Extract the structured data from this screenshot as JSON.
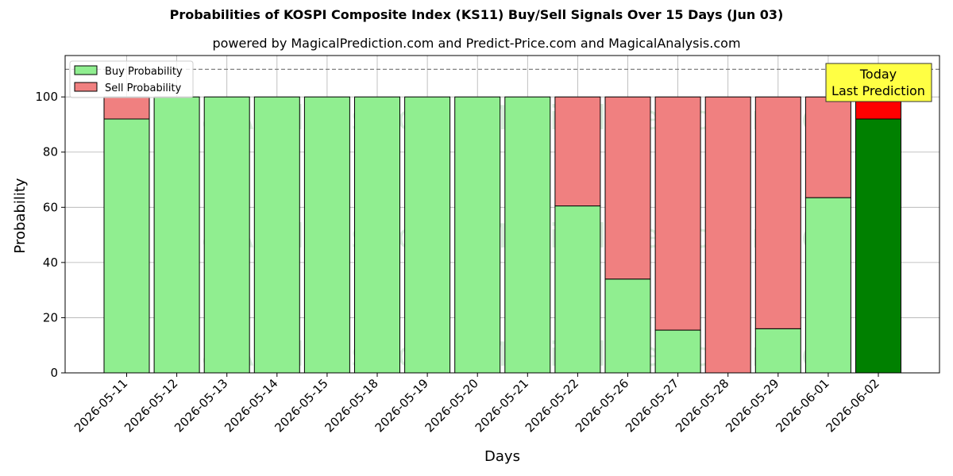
{
  "chart_data": {
    "type": "bar",
    "stacked": true,
    "title": "Probabilities of KOSPI Composite Index (KS11) Buy/Sell Signals Over 15 Days (Jun 03)",
    "subtitle": "powered by MagicalPrediction.com and Predict-Price.com and MagicalAnalysis.com",
    "xlabel": "Days",
    "ylabel": "Probability",
    "ylim": [
      0,
      115
    ],
    "yticks": [
      0,
      20,
      40,
      60,
      80,
      100
    ],
    "grid": true,
    "legend_placement": "top-left",
    "reference_line": 110,
    "categories": [
      "2026-05-11",
      "2026-05-12",
      "2026-05-13",
      "2026-05-14",
      "2026-05-15",
      "2026-05-18",
      "2026-05-19",
      "2026-05-20",
      "2026-05-21",
      "2026-05-22",
      "2026-05-26",
      "2026-05-27",
      "2026-05-28",
      "2026-05-29",
      "2026-06-01",
      "2026-06-02"
    ],
    "series": [
      {
        "name": "Buy Probability",
        "color": "#90ee90",
        "values": [
          92,
          100,
          100,
          100,
          100,
          100,
          100,
          100,
          100,
          60.5,
          34,
          15.5,
          0,
          16,
          63.5,
          92
        ]
      },
      {
        "name": "Sell Probability",
        "color": "#f08080",
        "values": [
          8,
          0,
          0,
          0,
          0,
          0,
          0,
          0,
          0,
          39.5,
          66,
          84.5,
          100,
          84,
          36.5,
          8
        ]
      }
    ],
    "highlight": {
      "index": 15,
      "buy_color": "#008000",
      "sell_color": "#ff0000"
    },
    "annotation": {
      "line1": "Today",
      "line2": "Last Prediction",
      "background": "#ffff44"
    },
    "watermarks": [
      "MagicalAnalysis.com",
      "MagicalPrediction.com"
    ]
  }
}
